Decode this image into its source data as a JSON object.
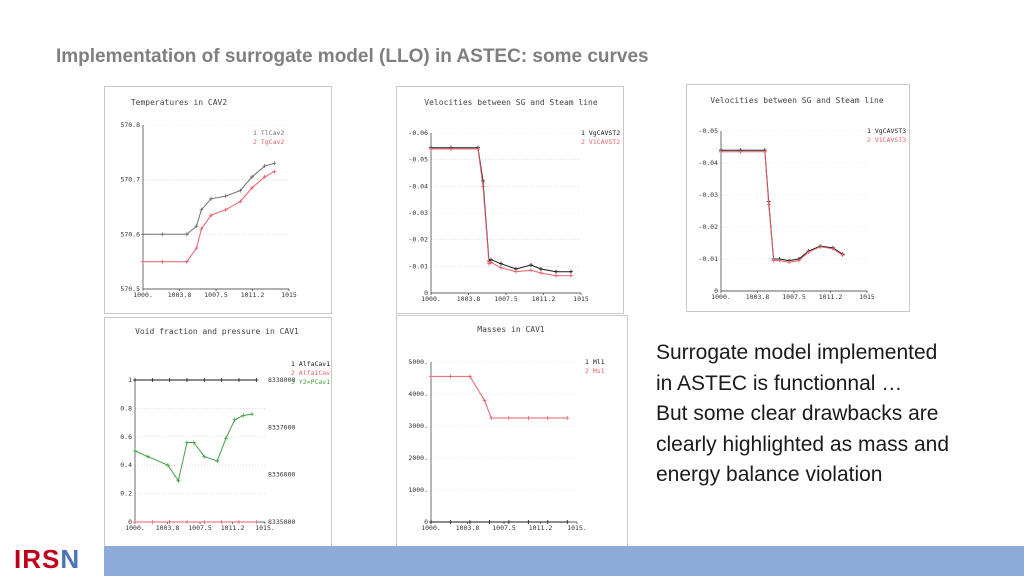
{
  "slide": {
    "title": "Implementation of surrogate model (LLO) in ASTEC: some curves",
    "description_lines": [
      "Surrogate model implemented",
      "in ASTEC is functionnal …",
      "But some clear drawbacks are",
      "clearly highlighted as mass and",
      "energy balance violation"
    ],
    "logo": {
      "text_main": "IRS",
      "text_accent": "N"
    },
    "colors": {
      "title": "#7f7f7f",
      "footer": "#8eaadb",
      "logo": "#c0001a",
      "series_gray": "#707070",
      "series_red": "#e8606a",
      "series_black": "#1a1a1a",
      "series_green": "#44a044"
    }
  },
  "chart_data": [
    {
      "type": "line",
      "title": "Temperatures in CAV2",
      "xlim": [
        1000,
        1015
      ],
      "ylim": [
        570.5,
        570.8
      ],
      "x_ticks": [
        "1000.",
        "1003.8",
        "1007.5",
        "1011.2",
        "1015"
      ],
      "y_ticks": [
        "570.8",
        "570.7",
        "570.6",
        "570.5"
      ],
      "series": [
        {
          "name": "1 TlCav2",
          "color": "#707070",
          "x": [
            1000,
            1002,
            1004.5,
            1005.5,
            1006,
            1007,
            1008.5,
            1010,
            1011.2,
            1012.5,
            1013.5
          ],
          "y": [
            570.6,
            570.6,
            570.6,
            570.615,
            570.645,
            570.665,
            570.67,
            570.68,
            570.705,
            570.725,
            570.73
          ]
        },
        {
          "name": "2 TgCav2",
          "color": "#e8606a",
          "x": [
            1000,
            1002,
            1004.5,
            1005.5,
            1006,
            1007,
            1008.5,
            1010,
            1011.2,
            1012.5,
            1013.5
          ],
          "y": [
            570.55,
            570.55,
            570.55,
            570.575,
            570.61,
            570.635,
            570.645,
            570.66,
            570.685,
            570.705,
            570.715
          ]
        }
      ]
    },
    {
      "type": "line",
      "title": "Velocities between SG and Steam line",
      "xlim": [
        1000,
        1015
      ],
      "ylim": [
        -0.06,
        0
      ],
      "x_ticks": [
        "1000.",
        "1003.8",
        "1007.5",
        "1011.2",
        "1015"
      ],
      "y_ticks": [
        "0",
        "-0.01",
        "-0.02",
        "-0.03",
        "-0.04",
        "-0.05",
        "-0.06"
      ],
      "series": [
        {
          "name": "1 VgCAVST2",
          "color": "#1a1a1a",
          "x": [
            1000,
            1002,
            1004.7,
            1005.2,
            1005.8,
            1006,
            1007,
            1008.5,
            1010,
            1011,
            1012.5,
            1014
          ],
          "y": [
            -0.0055,
            -0.0055,
            -0.0055,
            -0.018,
            -0.048,
            -0.0475,
            -0.049,
            -0.051,
            -0.0495,
            -0.051,
            -0.052,
            -0.052
          ]
        },
        {
          "name": "2 V1CAVST2",
          "color": "#e8606a",
          "x": [
            1000,
            1002,
            1004.7,
            1005.2,
            1005.8,
            1006,
            1007,
            1008.5,
            1010,
            1011,
            1012.5,
            1014
          ],
          "y": [
            -0.006,
            -0.006,
            -0.006,
            -0.02,
            -0.049,
            -0.0485,
            -0.0505,
            -0.052,
            -0.0515,
            -0.0525,
            -0.0535,
            -0.0535
          ]
        }
      ]
    },
    {
      "type": "line",
      "title": "Velocities between SG and Steam line",
      "xlim": [
        1000,
        1015
      ],
      "ylim": [
        -0.05,
        0
      ],
      "x_ticks": [
        "1000.",
        "1003.8",
        "1007.5",
        "1011.2",
        "1015"
      ],
      "y_ticks": [
        "0",
        "-0.01",
        "-0.02",
        "-0.03",
        "-0.04",
        "-0.05"
      ],
      "series": [
        {
          "name": "1 VgCAVST3",
          "color": "#1a1a1a",
          "x": [
            1000,
            1002,
            1004.5,
            1004.9,
            1005.4,
            1006,
            1007,
            1008,
            1009,
            1010.2,
            1011.5,
            1012.5
          ],
          "y": [
            -0.006,
            -0.006,
            -0.006,
            -0.022,
            -0.04,
            -0.04,
            -0.0405,
            -0.04,
            -0.0375,
            -0.036,
            -0.0365,
            -0.0385
          ]
        },
        {
          "name": "2 V1CAVST3",
          "color": "#e8606a",
          "x": [
            1000,
            1002,
            1004.5,
            1004.9,
            1005.4,
            1006,
            1007,
            1008,
            1009,
            1010.2,
            1011.5,
            1012.5
          ],
          "y": [
            -0.0065,
            -0.0065,
            -0.0065,
            -0.023,
            -0.0405,
            -0.0405,
            -0.041,
            -0.0405,
            -0.0378,
            -0.0362,
            -0.0368,
            -0.0388
          ]
        }
      ]
    },
    {
      "type": "line",
      "title": "Void fraction and pressure in CAV1",
      "xlim": [
        1000,
        1015
      ],
      "ylim": [
        0,
        1
      ],
      "x_ticks": [
        "1000.",
        "1003.8",
        "1007.5",
        "1011.2",
        "1015."
      ],
      "y_ticks": [
        "0",
        "0.2",
        "0.4",
        "0.6",
        "0.8",
        "1"
      ],
      "y2_ticks": [
        "8335000",
        "8336000",
        "8337000",
        "8338000"
      ],
      "series": [
        {
          "name": "1 AlfaCav1",
          "color": "#1a1a1a",
          "x": [
            1000,
            1002,
            1004,
            1006,
            1008,
            1010,
            1012,
            1014
          ],
          "y": [
            1,
            1,
            1,
            1,
            1,
            1,
            1,
            1
          ]
        },
        {
          "name": "2 Alfa1Cav1",
          "color": "#e8606a",
          "x": [
            1000,
            1002,
            1004,
            1006,
            1008,
            1010,
            1012,
            1014
          ],
          "y": [
            0,
            0,
            0,
            0,
            0,
            0,
            0,
            0
          ]
        },
        {
          "name": "3 Y2=PCav1",
          "color": "#44a044",
          "x": [
            1000,
            1001.5,
            1003.8,
            1005,
            1006,
            1006.8,
            1008,
            1009.5,
            1010.5,
            1011.5,
            1012.5,
            1013.5
          ],
          "y": [
            0.5,
            0.46,
            0.4,
            0.29,
            0.56,
            0.56,
            0.46,
            0.43,
            0.59,
            0.72,
            0.75,
            0.76
          ]
        }
      ]
    },
    {
      "type": "line",
      "title": "Masses in CAV1",
      "xlim": [
        1000,
        1015
      ],
      "ylim": [
        0,
        5000
      ],
      "x_ticks": [
        "1000.",
        "1003.8",
        "1007.5",
        "1011.2",
        "1015."
      ],
      "y_ticks": [
        "0",
        "1000.",
        "2000.",
        "3000.",
        "4000.",
        "5000."
      ],
      "series": [
        {
          "name": "1 Ml1",
          "color": "#1a1a1a",
          "x": [
            1000,
            1002,
            1004,
            1006,
            1008,
            1010,
            1012,
            1014
          ],
          "y": [
            0,
            0,
            0,
            0,
            0,
            0,
            0,
            0
          ]
        },
        {
          "name": "2 Ms1",
          "color": "#e8606a",
          "x": [
            1000,
            1002,
            1004,
            1005.5,
            1006.2,
            1008,
            1010,
            1012,
            1014
          ],
          "y": [
            4550,
            4550,
            4550,
            3800,
            3250,
            3250,
            3250,
            3250,
            3250
          ]
        }
      ]
    }
  ]
}
